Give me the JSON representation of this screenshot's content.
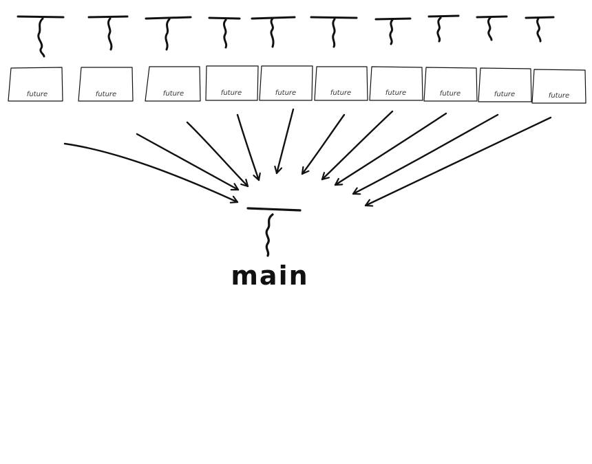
{
  "diagram": {
    "kind": "concurrency sketch: spawned threads each returning a future, all joined into the main thread",
    "ink_color": "#111111",
    "background_color": "#ffffff",
    "worker_threads": [
      {
        "label": "future",
        "icon": "thread-icon"
      },
      {
        "label": "future",
        "icon": "thread-icon"
      },
      {
        "label": "future",
        "icon": "thread-icon"
      },
      {
        "label": "future",
        "icon": "thread-icon"
      },
      {
        "label": "future",
        "icon": "thread-icon"
      },
      {
        "label": "future",
        "icon": "thread-icon"
      },
      {
        "label": "future",
        "icon": "thread-icon"
      },
      {
        "label": "future",
        "icon": "thread-icon"
      },
      {
        "label": "future",
        "icon": "thread-icon"
      },
      {
        "label": "future",
        "icon": "thread-icon"
      }
    ],
    "main_thread": {
      "label": "main",
      "icon": "thread-icon"
    },
    "edges": "every future points to main"
  }
}
